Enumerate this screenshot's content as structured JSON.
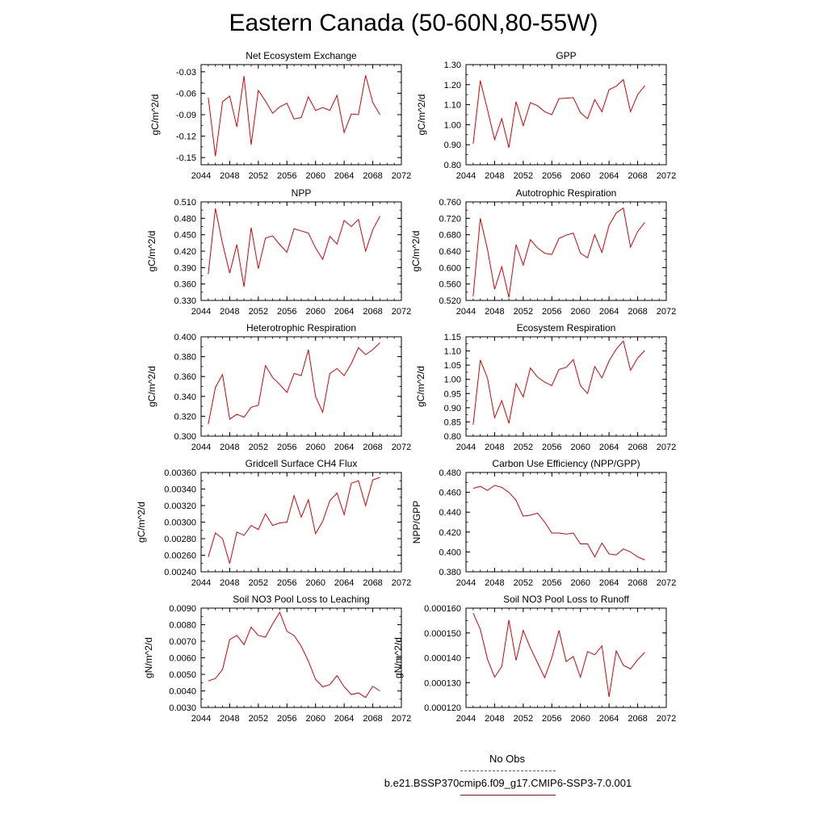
{
  "page": {
    "title": "Eastern Canada (50-60N,80-55W)"
  },
  "legend": {
    "obs_label": "No Obs",
    "obs_color": "#5555dd",
    "model_label": "b.e21.BSSP370cmip6.f09_g17.CMIP6-SSP3-7.0.001",
    "model_color": "#dd0000"
  },
  "chart_data": [
    {
      "type": "line",
      "title": "Net Ecosystem Exchange",
      "ylabel": "gC/m^2/d",
      "xlim": [
        2044,
        2072
      ],
      "xticks": [
        "2044",
        "2048",
        "2052",
        "2056",
        "2060",
        "2064",
        "2068",
        "2072"
      ],
      "ylim": [
        -0.16,
        -0.02
      ],
      "yticks": [
        "-0.03",
        "-0.06",
        "-0.09",
        "-0.12",
        "-0.15"
      ],
      "series": [
        {
          "color": "#dd0000",
          "x": [
            2045,
            2046,
            2047,
            2048,
            2049,
            2050,
            2051,
            2052,
            2053,
            2054,
            2055,
            2056,
            2057,
            2058,
            2059,
            2060,
            2061,
            2062,
            2063,
            2064,
            2065,
            2066,
            2067,
            2068,
            2069
          ],
          "values": [
            -0.066,
            -0.148,
            -0.072,
            -0.064,
            -0.107,
            -0.036,
            -0.132,
            -0.056,
            -0.071,
            -0.088,
            -0.079,
            -0.074,
            -0.096,
            -0.094,
            -0.065,
            -0.084,
            -0.08,
            -0.084,
            -0.063,
            -0.115,
            -0.089,
            -0.09,
            -0.035,
            -0.073,
            -0.09
          ]
        }
      ]
    },
    {
      "type": "line",
      "title": "GPP",
      "ylabel": "gC/m^2/d",
      "xlim": [
        2044,
        2072
      ],
      "xticks": [
        "2044",
        "2048",
        "2052",
        "2056",
        "2060",
        "2064",
        "2068",
        "2072"
      ],
      "ylim": [
        0.8,
        1.3
      ],
      "yticks": [
        "1.30",
        "1.20",
        "1.10",
        "1.00",
        "0.90",
        "0.80"
      ],
      "series": [
        {
          "color": "#dd0000",
          "x": [
            2045,
            2046,
            2047,
            2048,
            2049,
            2050,
            2051,
            2052,
            2053,
            2054,
            2055,
            2056,
            2057,
            2058,
            2059,
            2060,
            2061,
            2062,
            2063,
            2064,
            2065,
            2066,
            2067,
            2068,
            2069
          ],
          "values": [
            0.905,
            1.22,
            1.075,
            0.925,
            1.03,
            0.885,
            1.115,
            0.995,
            1.11,
            1.095,
            1.065,
            1.05,
            1.13,
            1.132,
            1.135,
            1.06,
            1.03,
            1.125,
            1.065,
            1.175,
            1.192,
            1.225,
            1.065,
            1.15,
            1.195
          ]
        }
      ]
    },
    {
      "type": "line",
      "title": "NPP",
      "ylabel": "gC/m^2/d",
      "xlim": [
        2044,
        2072
      ],
      "xticks": [
        "2044",
        "2048",
        "2052",
        "2056",
        "2060",
        "2064",
        "2068",
        "2072"
      ],
      "ylim": [
        0.33,
        0.51
      ],
      "yticks": [
        "0.510",
        "0.480",
        "0.450",
        "0.420",
        "0.390",
        "0.360",
        "0.330"
      ],
      "series": [
        {
          "color": "#dd0000",
          "x": [
            2045,
            2046,
            2047,
            2048,
            2049,
            2050,
            2051,
            2052,
            2053,
            2054,
            2055,
            2056,
            2057,
            2058,
            2059,
            2060,
            2061,
            2062,
            2063,
            2064,
            2065,
            2066,
            2067,
            2068,
            2069
          ],
          "values": [
            0.378,
            0.498,
            0.434,
            0.38,
            0.432,
            0.355,
            0.463,
            0.388,
            0.444,
            0.448,
            0.432,
            0.418,
            0.461,
            0.457,
            0.453,
            0.426,
            0.405,
            0.447,
            0.433,
            0.476,
            0.465,
            0.478,
            0.42,
            0.459,
            0.484
          ]
        }
      ]
    },
    {
      "type": "line",
      "title": "Autotrophic Respiration",
      "ylabel": "gC/m^2/d",
      "xlim": [
        2044,
        2072
      ],
      "xticks": [
        "2044",
        "2048",
        "2052",
        "2056",
        "2060",
        "2064",
        "2068",
        "2072"
      ],
      "ylim": [
        0.52,
        0.76
      ],
      "yticks": [
        "0.760",
        "0.720",
        "0.680",
        "0.640",
        "0.600",
        "0.560",
        "0.520"
      ],
      "series": [
        {
          "color": "#dd0000",
          "x": [
            2045,
            2046,
            2047,
            2048,
            2049,
            2050,
            2051,
            2052,
            2053,
            2054,
            2055,
            2056,
            2057,
            2058,
            2059,
            2060,
            2061,
            2062,
            2063,
            2064,
            2065,
            2066,
            2067,
            2068,
            2069
          ],
          "values": [
            0.53,
            0.72,
            0.645,
            0.547,
            0.602,
            0.527,
            0.656,
            0.606,
            0.668,
            0.648,
            0.635,
            0.632,
            0.671,
            0.679,
            0.684,
            0.635,
            0.624,
            0.68,
            0.637,
            0.703,
            0.733,
            0.745,
            0.65,
            0.688,
            0.71
          ]
        }
      ]
    },
    {
      "type": "line",
      "title": "Heterotrophic Respiration",
      "ylabel": "gC/m^2/d",
      "xlim": [
        2044,
        2072
      ],
      "xticks": [
        "2044",
        "2048",
        "2052",
        "2056",
        "2060",
        "2064",
        "2068",
        "2072"
      ],
      "ylim": [
        0.3,
        0.4
      ],
      "yticks": [
        "0.400",
        "0.380",
        "0.360",
        "0.340",
        "0.320",
        "0.300"
      ],
      "series": [
        {
          "color": "#dd0000",
          "x": [
            2045,
            2046,
            2047,
            2048,
            2049,
            2050,
            2051,
            2052,
            2053,
            2054,
            2055,
            2056,
            2057,
            2058,
            2059,
            2060,
            2061,
            2062,
            2063,
            2064,
            2065,
            2066,
            2067,
            2068,
            2069
          ],
          "values": [
            0.312,
            0.349,
            0.362,
            0.317,
            0.322,
            0.319,
            0.329,
            0.331,
            0.371,
            0.359,
            0.352,
            0.344,
            0.363,
            0.361,
            0.387,
            0.34,
            0.324,
            0.363,
            0.368,
            0.361,
            0.373,
            0.389,
            0.382,
            0.387,
            0.394
          ]
        }
      ]
    },
    {
      "type": "line",
      "title": "Ecosystem Respiration",
      "ylabel": "gC/m^2/d",
      "xlim": [
        2044,
        2072
      ],
      "xticks": [
        "2044",
        "2048",
        "2052",
        "2056",
        "2060",
        "2064",
        "2068",
        "2072"
      ],
      "ylim": [
        0.8,
        1.15
      ],
      "yticks": [
        "1.15",
        "1.10",
        "1.05",
        "1.00",
        "0.95",
        "0.90",
        "0.85",
        "0.80"
      ],
      "series": [
        {
          "color": "#dd0000",
          "x": [
            2045,
            2046,
            2047,
            2048,
            2049,
            2050,
            2051,
            2052,
            2053,
            2054,
            2055,
            2056,
            2057,
            2058,
            2059,
            2060,
            2061,
            2062,
            2063,
            2064,
            2065,
            2066,
            2067,
            2068,
            2069
          ],
          "values": [
            0.84,
            1.068,
            1.005,
            0.865,
            0.925,
            0.845,
            0.985,
            0.938,
            1.04,
            1.008,
            0.99,
            0.978,
            1.035,
            1.042,
            1.07,
            0.978,
            0.95,
            1.045,
            1.005,
            1.065,
            1.106,
            1.135,
            1.032,
            1.075,
            1.102
          ]
        }
      ]
    },
    {
      "type": "line",
      "title": "Gridcell Surface CH4 Flux",
      "ylabel": "gC/m^2/d",
      "xlim": [
        2044,
        2072
      ],
      "xticks": [
        "2044",
        "2048",
        "2052",
        "2056",
        "2060",
        "2064",
        "2068",
        "2072"
      ],
      "ylim": [
        0.0024,
        0.0036
      ],
      "yticks": [
        "0.00360",
        "0.00340",
        "0.00320",
        "0.00300",
        "0.00280",
        "0.00260",
        "0.00240"
      ],
      "series": [
        {
          "color": "#dd0000",
          "x": [
            2045,
            2046,
            2047,
            2048,
            2049,
            2050,
            2051,
            2052,
            2053,
            2054,
            2055,
            2056,
            2057,
            2058,
            2059,
            2060,
            2061,
            2062,
            2063,
            2064,
            2065,
            2066,
            2067,
            2068,
            2069
          ],
          "values": [
            0.00258,
            0.00287,
            0.0028,
            0.0025,
            0.00288,
            0.00284,
            0.00296,
            0.00291,
            0.0031,
            0.00296,
            0.00299,
            0.003,
            0.00332,
            0.00306,
            0.00327,
            0.00286,
            0.00301,
            0.00326,
            0.00335,
            0.00309,
            0.00347,
            0.0035,
            0.0032,
            0.00351,
            0.00354
          ]
        }
      ]
    },
    {
      "type": "line",
      "title": "Carbon Use Efficiency (NPP/GPP)",
      "ylabel": "NPP/GPP",
      "xlim": [
        2044,
        2072
      ],
      "xticks": [
        "2044",
        "2048",
        "2052",
        "2056",
        "2060",
        "2064",
        "2068",
        "2072"
      ],
      "ylim": [
        0.38,
        0.48
      ],
      "yticks": [
        "0.480",
        "0.460",
        "0.440",
        "0.420",
        "0.400",
        "0.380"
      ],
      "series": [
        {
          "color": "#dd0000",
          "x": [
            2045,
            2046,
            2047,
            2048,
            2049,
            2050,
            2051,
            2052,
            2053,
            2054,
            2055,
            2056,
            2057,
            2058,
            2059,
            2060,
            2061,
            2062,
            2063,
            2064,
            2065,
            2066,
            2067,
            2068,
            2069
          ],
          "values": [
            0.464,
            0.466,
            0.462,
            0.467,
            0.465,
            0.46,
            0.452,
            0.436,
            0.437,
            0.439,
            0.43,
            0.419,
            0.419,
            0.418,
            0.419,
            0.408,
            0.408,
            0.395,
            0.409,
            0.398,
            0.397,
            0.403,
            0.4,
            0.395,
            0.392
          ]
        }
      ]
    },
    {
      "type": "line",
      "title": "Soil NO3 Pool Loss to Leaching",
      "ylabel": "gN/m^2/d",
      "xlim": [
        2044,
        2072
      ],
      "xticks": [
        "2044",
        "2048",
        "2052",
        "2056",
        "2060",
        "2064",
        "2068",
        "2072"
      ],
      "ylim": [
        0.003,
        0.009
      ],
      "yticks": [
        "0.0090",
        "0.0080",
        "0.0070",
        "0.0060",
        "0.0050",
        "0.0040",
        "0.0030"
      ],
      "series": [
        {
          "color": "#dd0000",
          "x": [
            2045,
            2046,
            2047,
            2048,
            2049,
            2050,
            2051,
            2052,
            2053,
            2054,
            2055,
            2056,
            2057,
            2058,
            2059,
            2060,
            2061,
            2062,
            2063,
            2064,
            2065,
            2066,
            2067,
            2068,
            2069
          ],
          "values": [
            0.0046,
            0.00475,
            0.0053,
            0.0071,
            0.00735,
            0.0068,
            0.00785,
            0.00735,
            0.00725,
            0.00805,
            0.00875,
            0.0076,
            0.00735,
            0.0067,
            0.0058,
            0.0047,
            0.00425,
            0.00438,
            0.00492,
            0.00425,
            0.00378,
            0.00388,
            0.0036,
            0.00428,
            0.004
          ]
        }
      ]
    },
    {
      "type": "line",
      "title": "Soil NO3 Pool Loss to Runoff",
      "ylabel": "gN/m^2/d",
      "xlim": [
        2044,
        2072
      ],
      "xticks": [
        "2044",
        "2048",
        "2052",
        "2056",
        "2060",
        "2064",
        "2068",
        "2072"
      ],
      "ylim": [
        0.00012,
        0.00016
      ],
      "yticks": [
        "0.000160",
        "0.000150",
        "0.000140",
        "0.000130",
        "0.000120"
      ],
      "series": [
        {
          "color": "#dd0000",
          "x": [
            2045,
            2046,
            2047,
            2048,
            2049,
            2050,
            2051,
            2052,
            2053,
            2054,
            2055,
            2056,
            2057,
            2058,
            2059,
            2060,
            2061,
            2062,
            2063,
            2064,
            2065,
            2066,
            2067,
            2068,
            2069
          ],
          "values": [
            0.000158,
            0.0001515,
            0.0001395,
            0.0001322,
            0.0001365,
            0.0001552,
            0.000139,
            0.000151,
            0.000144,
            0.000138,
            0.000132,
            0.00014,
            0.000151,
            0.0001385,
            0.0001405,
            0.0001322,
            0.0001425,
            0.0001412,
            0.0001448,
            0.0001242,
            0.0001428,
            0.000137,
            0.0001355,
            0.0001392,
            0.0001422
          ]
        }
      ]
    }
  ]
}
